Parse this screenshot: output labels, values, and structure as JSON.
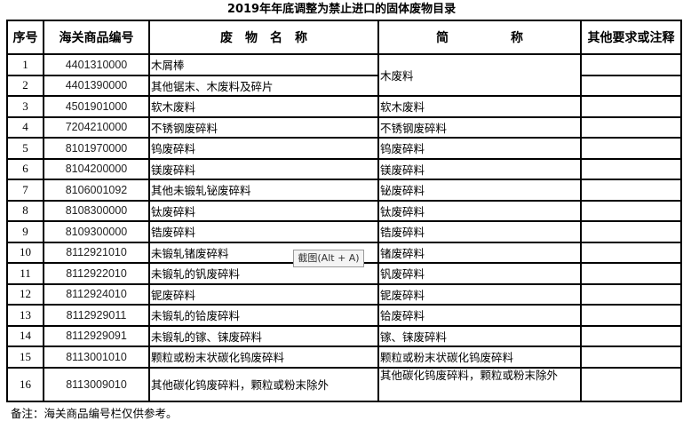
{
  "title": "2019年年底调整为禁止进口的固体废物目录",
  "headers": [
    "序号",
    "海关商品编号",
    "废　物　名　称",
    "简　　　　　称",
    "其他要求或注释"
  ],
  "rows": [
    {
      "no": "1",
      "code": "4401310000",
      "name": "木屑棒",
      "short": "木废料",
      "note": ""
    },
    {
      "no": "2",
      "code": "4401390000",
      "name": "其他锯末、木废料及碎片",
      "short": "",
      "note": ""
    },
    {
      "no": "3",
      "code": "4501901000",
      "name": "软木废料",
      "short": "软木废料",
      "note": ""
    },
    {
      "no": "4",
      "code": "7204210000",
      "name": "不锈钢废碎料",
      "short": "不锈钢废碎料",
      "note": ""
    },
    {
      "no": "5",
      "code": "8101970000",
      "name": "钨废碎料",
      "short": "钨废碎料",
      "note": ""
    },
    {
      "no": "6",
      "code": "8104200000",
      "name": "镁废碎料",
      "short": "镁废碎料",
      "note": ""
    },
    {
      "no": "7",
      "code": "8106001092",
      "name": "其他未锻轧铋废碎料",
      "short": "铋废碎料",
      "note": ""
    },
    {
      "no": "8",
      "code": "8108300000",
      "name": "钛废碎料",
      "short": "钛废碎料",
      "note": ""
    },
    {
      "no": "9",
      "code": "8109300000",
      "name": "锆废碎料",
      "short": "锆废碎料",
      "note": ""
    },
    {
      "no": "10",
      "code": "8112921010",
      "name": "未锻轧锗废碎料",
      "short": "锗废碎料",
      "note": ""
    },
    {
      "no": "11",
      "code": "8112922010",
      "name": "未锻轧的钒废碎料",
      "short": "钒废碎料",
      "note": ""
    },
    {
      "no": "12",
      "code": "8112924010",
      "name": "铌废碎料",
      "short": "铌废碎料",
      "note": ""
    },
    {
      "no": "13",
      "code": "8112929011",
      "name": "未锻轧的铪废碎料",
      "short": "铪废碎料",
      "note": ""
    },
    {
      "no": "14",
      "code": "8112929091",
      "name": "未锻轧的镓、铼废碎料",
      "short": "镓、铼废碎料",
      "note": ""
    },
    {
      "no": "15",
      "code": "8113001010",
      "name": "颗粒或粉末状碳化钨废碎料",
      "short": "颗粒或粉末状碳化钨废碎料",
      "note": ""
    },
    {
      "no": "16",
      "code": "8113009010",
      "name": "其他碳化钨废碎料，颗粒或粉末除外",
      "short": "其他碳化钨废碎料，颗粒或粉末除外",
      "note": ""
    }
  ],
  "footnote": "备注：海关商品编号栏仅供参考。",
  "tooltip": "截图(Alt + A)"
}
